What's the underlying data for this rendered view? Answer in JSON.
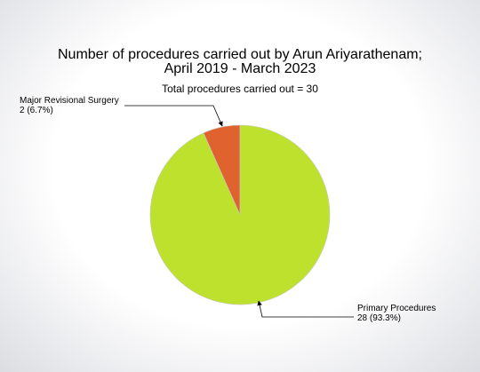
{
  "chart_data": {
    "type": "pie",
    "title_lines": [
      "Number of procedures carried out by Arun Ariyarathenam;",
      "April 2019 - March 2023"
    ],
    "subtitle": "Total procedures carried out = 30",
    "categories": [
      "Major Revisional Surgery",
      "Primary Procedures"
    ],
    "values": [
      2,
      28
    ],
    "value_labels": [
      "2 (6.7%)",
      "28 (93.3%)"
    ],
    "colors": [
      "#e0622e",
      "#bde12d"
    ]
  }
}
